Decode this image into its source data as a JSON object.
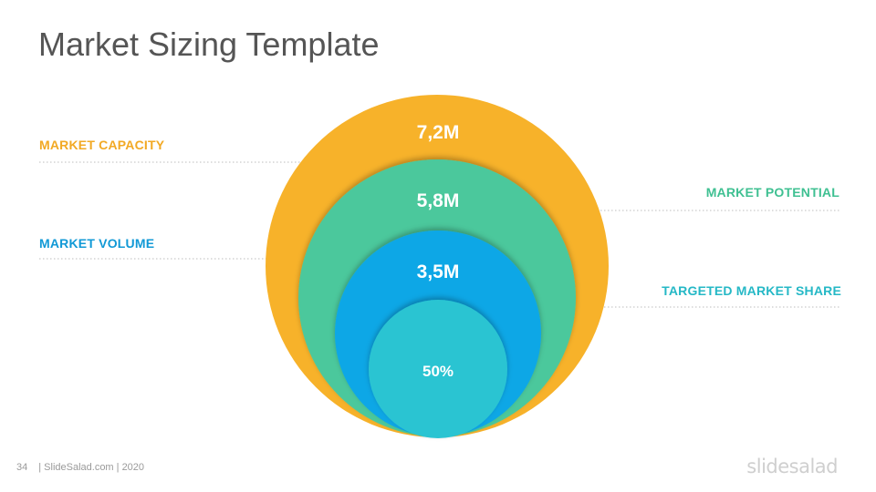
{
  "slide": {
    "title": "Market Sizing Template"
  },
  "layers": [
    {
      "name": "MARKET CAPACITY",
      "value": "7,2M",
      "color": "#F7B22A"
    },
    {
      "name": "MARKET POTENTIAL",
      "value": "5,8M",
      "color": "#4BC89C"
    },
    {
      "name": "MARKET VOLUME",
      "value": "3,5M",
      "color": "#11A7E6"
    },
    {
      "name": "TARGETED MARKET SHARE",
      "value": "50%",
      "color": "#2CC4D2"
    }
  ],
  "label_colors": {
    "capacity": "#F2A924",
    "potential": "#3FC092",
    "volume": "#1199D6",
    "share": "#25B8C6"
  },
  "footer": {
    "page_number": "34",
    "credit": "| SlideSalad.com | 2020"
  },
  "logo": {
    "text": "slidesalad"
  }
}
